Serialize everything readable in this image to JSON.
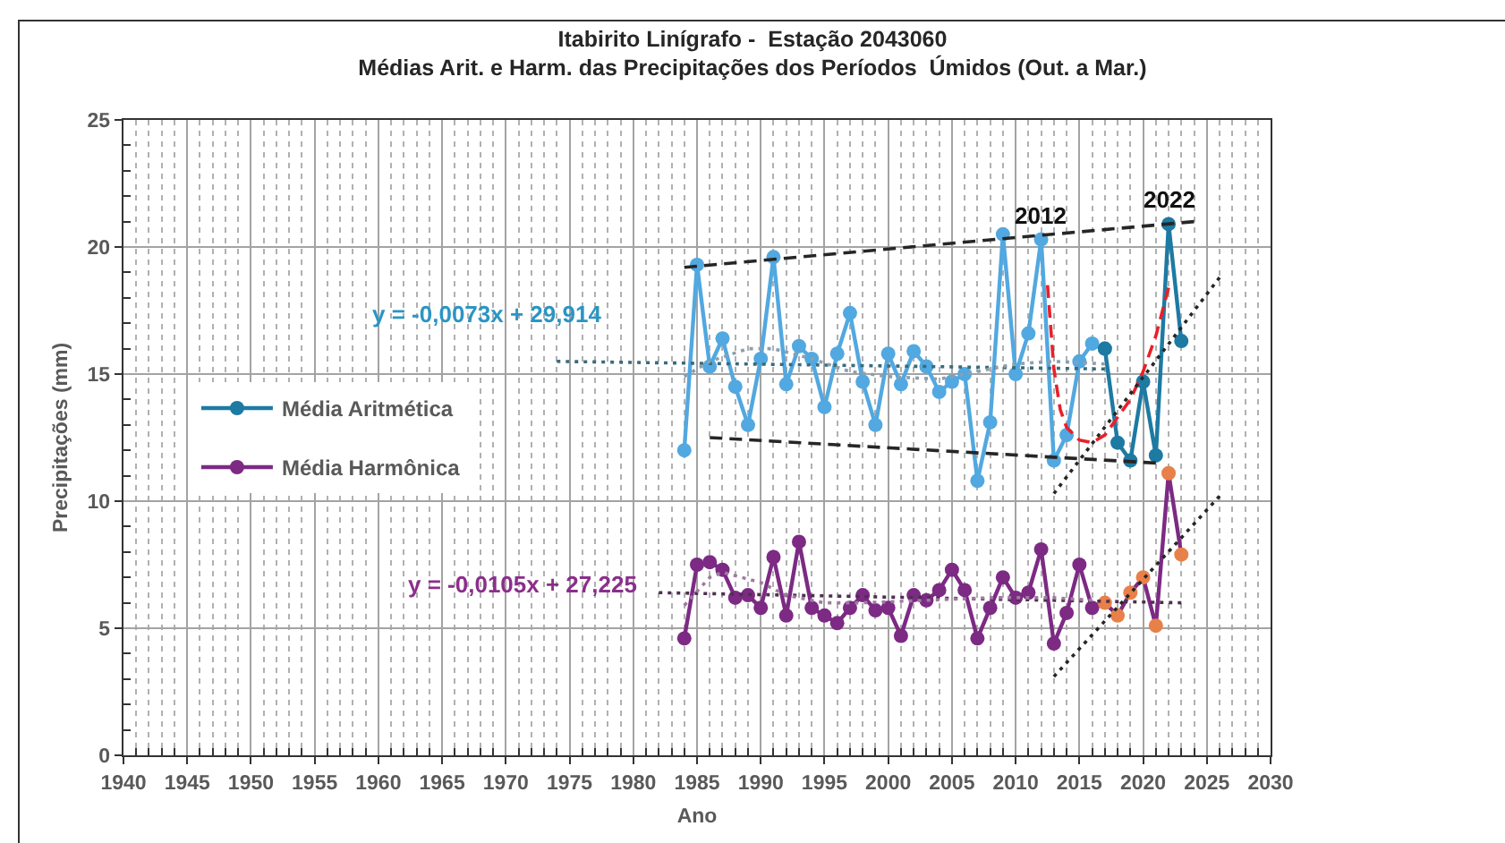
{
  "chart_data": {
    "type": "line",
    "title": "Itabirito Linígrafo -  Estação 2043060",
    "subtitle": "Médias Arit. e Harm. das Precipitações dos Períodos  Úmidos (Out. a Mar.)",
    "xlabel": "Ano",
    "ylabel": "Precipitações (mm)",
    "xlim": [
      1940,
      2030
    ],
    "ylim": [
      0,
      25
    ],
    "xticks": [
      1940,
      {
        "value": 1941,
        "label": null
      },
      {
        "value": 1942,
        "label": null
      },
      {
        "value": 1943,
        "label": null
      },
      {
        "value": 1944,
        "label": null
      },
      1945,
      {
        "value": 1946,
        "label": null
      },
      {
        "value": 1947,
        "label": null
      },
      {
        "value": 1948,
        "label": null
      },
      {
        "value": 1949,
        "label": null
      },
      1950,
      {
        "value": 1951,
        "label": null
      },
      {
        "value": 1952,
        "label": null
      },
      {
        "value": 1953,
        "label": null
      },
      {
        "value": 1954,
        "label": null
      },
      1955,
      {
        "value": 1956,
        "label": null
      },
      {
        "value": 1957,
        "label": null
      },
      {
        "value": 1958,
        "label": null
      },
      {
        "value": 1959,
        "label": null
      },
      1960,
      {
        "value": 1961,
        "label": null
      },
      {
        "value": 1962,
        "label": null
      },
      {
        "value": 1963,
        "label": null
      },
      {
        "value": 1964,
        "label": null
      },
      1965,
      {
        "value": 1966,
        "label": null
      },
      {
        "value": 1967,
        "label": null
      },
      {
        "value": 1968,
        "label": null
      },
      {
        "value": 1969,
        "label": null
      },
      1970,
      {
        "value": 1971,
        "label": null
      },
      {
        "value": 1972,
        "label": null
      },
      {
        "value": 1973,
        "label": null
      },
      {
        "value": 1974,
        "label": null
      },
      1975,
      {
        "value": 1976,
        "label": null
      },
      {
        "value": 1977,
        "label": null
      },
      {
        "value": 1978,
        "label": null
      },
      {
        "value": 1979,
        "label": null
      },
      1980,
      {
        "value": 1981,
        "label": null
      },
      {
        "value": 1982,
        "label": null
      },
      {
        "value": 1983,
        "label": null
      },
      {
        "value": 1984,
        "label": null
      },
      1985,
      {
        "value": 1986,
        "label": null
      },
      {
        "value": 1987,
        "label": null
      },
      {
        "value": 1988,
        "label": null
      },
      {
        "value": 1989,
        "label": null
      },
      1990,
      {
        "value": 1991,
        "label": null
      },
      {
        "value": 1992,
        "label": null
      },
      {
        "value": 1993,
        "label": null
      },
      {
        "value": 1994,
        "label": null
      },
      1995,
      {
        "value": 1996,
        "label": null
      },
      {
        "value": 1997,
        "label": null
      },
      {
        "value": 1998,
        "label": null
      },
      {
        "value": 1999,
        "label": null
      },
      2000,
      {
        "value": 2001,
        "label": null
      },
      {
        "value": 2002,
        "label": null
      },
      {
        "value": 2003,
        "label": null
      },
      {
        "value": 2004,
        "label": null
      },
      2005,
      {
        "value": 2006,
        "label": null
      },
      {
        "value": 2007,
        "label": null
      },
      {
        "value": 2008,
        "label": null
      },
      {
        "value": 2009,
        "label": null
      },
      2010,
      {
        "value": 2011,
        "label": null
      },
      {
        "value": 2012,
        "label": null
      },
      {
        "value": 2013,
        "label": null
      },
      {
        "value": 2014,
        "label": null
      },
      2015,
      {
        "value": 2016,
        "label": null
      },
      {
        "value": 2017,
        "label": null
      },
      {
        "value": 2018,
        "label": null
      },
      {
        "value": 2019,
        "label": null
      },
      2020,
      {
        "value": 2021,
        "label": null
      },
      {
        "value": 2022,
        "label": null
      },
      {
        "value": 2023,
        "label": null
      },
      {
        "value": 2024,
        "label": null
      },
      2025,
      {
        "value": 2026,
        "label": null
      },
      {
        "value": 2027,
        "label": null
      },
      {
        "value": 2028,
        "label": null
      },
      {
        "value": 2029,
        "label": null
      },
      2030
    ],
    "yticks": [
      0,
      {
        "value": 1,
        "label": null
      },
      {
        "value": 2,
        "label": null
      },
      {
        "value": 3,
        "label": null
      },
      {
        "value": 4,
        "label": null
      },
      5,
      {
        "value": 6,
        "label": null
      },
      {
        "value": 7,
        "label": null
      },
      {
        "value": 8,
        "label": null
      },
      {
        "value": 9,
        "label": null
      },
      10,
      {
        "value": 11,
        "label": null
      },
      {
        "value": 12,
        "label": null
      },
      {
        "value": 13,
        "label": null
      },
      {
        "value": 14,
        "label": null
      },
      15,
      {
        "value": 16,
        "label": null
      },
      {
        "value": 17,
        "label": null
      },
      {
        "value": 18,
        "label": null
      },
      {
        "value": 19,
        "label": null
      },
      20,
      {
        "value": 21,
        "label": null
      },
      {
        "value": 22,
        "label": null
      },
      {
        "value": 23,
        "label": null
      },
      {
        "value": 24,
        "label": null
      },
      25
    ],
    "grid": true,
    "legend": "left",
    "annotations": [
      "y = -0,0073x + 29,914",
      "y = -0,0105x + 27,225",
      {
        "text": "2012",
        "x": 2012,
        "y": 20.3
      },
      {
        "text": "2022",
        "x": 2022,
        "y": 20.9
      }
    ],
    "series": [
      {
        "x": [
          1984,
          1985,
          1986,
          1987,
          1988,
          1989,
          1990,
          1991,
          1992,
          1993,
          1994,
          1995,
          1996,
          1997,
          1998,
          1999,
          2000,
          2001,
          2002,
          2003,
          2004,
          2005,
          2006,
          2007,
          2008,
          2009,
          2010,
          2011,
          2012,
          2013,
          2014,
          2015,
          2016,
          2017
        ],
        "values": [
          12.0,
          19.3,
          15.3,
          16.4,
          14.5,
          13.0,
          15.6,
          19.6,
          14.6,
          16.1,
          15.6,
          13.7,
          15.8,
          17.4,
          14.7,
          13.0,
          15.8,
          14.6,
          15.9,
          15.3,
          14.3,
          14.7,
          15.0,
          10.8,
          13.1,
          20.5,
          15.0,
          16.6,
          20.3,
          11.6,
          12.6,
          15.5,
          16.2,
          16.0
        ],
        "color": "#52a8e0",
        "marker": "circle",
        "line_style": "solid"
      },
      {
        "name": "Média Aritmética",
        "x": [
          2017,
          2018,
          2019,
          2020,
          2021,
          2022,
          2023
        ],
        "values": [
          16.0,
          12.3,
          11.6,
          14.7,
          11.8,
          20.9,
          16.3
        ],
        "color": "#1d7aa3",
        "marker": "circle",
        "line_style": "solid"
      },
      {
        "name": "Média Harmônica",
        "x": [
          1984,
          1985,
          1986,
          1987,
          1988,
          1989,
          1990,
          1991,
          1992,
          1993,
          1994,
          1995,
          1996,
          1997,
          1998,
          1999,
          2000,
          2001,
          2002,
          2003,
          2004,
          2005,
          2006,
          2007,
          2008,
          2009,
          2010,
          2011,
          2012,
          2013,
          2014,
          2015,
          2016,
          2017,
          2018,
          2019,
          2020,
          2021,
          2022,
          2023
        ],
        "values": [
          4.6,
          7.5,
          7.6,
          7.3,
          6.2,
          6.3,
          5.8,
          7.8,
          5.5,
          8.4,
          5.8,
          5.5,
          5.2,
          5.8,
          6.3,
          5.7,
          5.8,
          4.7,
          6.3,
          6.1,
          6.5,
          7.3,
          6.5,
          4.6,
          5.8,
          7.0,
          6.2,
          6.4,
          8.1,
          4.4,
          5.6,
          7.5,
          5.8,
          6.0,
          5.5,
          6.4,
          7.0,
          5.1,
          11.1,
          7.9
        ],
        "color": "#7c2a84",
        "colors": [
          "#7c2a84",
          "#7c2a84",
          "#7c2a84",
          "#7c2a84",
          "#7c2a84",
          "#7c2a84",
          "#7c2a84",
          "#7c2a84",
          "#7c2a84",
          "#7c2a84",
          "#7c2a84",
          "#7c2a84",
          "#7c2a84",
          "#7c2a84",
          "#7c2a84",
          "#7c2a84",
          "#7c2a84",
          "#7c2a84",
          "#7c2a84",
          "#7c2a84",
          "#7c2a84",
          "#7c2a84",
          "#7c2a84",
          "#7c2a84",
          "#7c2a84",
          "#7c2a84",
          "#7c2a84",
          "#7c2a84",
          "#7c2a84",
          "#7c2a84",
          "#7c2a84",
          "#7c2a84",
          "#7c2a84",
          "#e8804a",
          "#e8804a",
          "#e8804a",
          "#e8804a",
          "#e8804a",
          "#e8804a",
          "#e8804a"
        ],
        "marker": "circle",
        "line_style": "solid"
      },
      {
        "x": [
          1974,
          2017
        ],
        "values": [
          15.5,
          15.2
        ],
        "color": "#3a6b7a",
        "marker": "none",
        "line_style": "dotted"
      },
      {
        "x": [
          1984,
          1986,
          1989,
          1991,
          1994,
          1997,
          2000,
          2004,
          2006,
          2010,
          2013,
          2017
        ],
        "values": [
          14.9,
          15.5,
          16.0,
          16.0,
          15.6,
          15.1,
          14.9,
          14.8,
          15.0,
          15.4,
          15.5,
          15.4
        ],
        "color": "#8aa0b0",
        "marker": "none",
        "line_style": "dotted"
      },
      {
        "x": [
          1982,
          2023
        ],
        "values": [
          6.4,
          6.0
        ],
        "color": "#4e2f50",
        "marker": "none",
        "line_style": "dotted"
      },
      {
        "x": [
          1984,
          1986,
          1987,
          1990,
          1992,
          1995,
          1998,
          2003,
          2008,
          2013,
          2016
        ],
        "values": [
          5.9,
          7.0,
          7.2,
          6.8,
          6.3,
          6.0,
          6.0,
          6.1,
          6.2,
          6.2,
          6.1
        ],
        "color": "#a07aa2",
        "marker": "none",
        "line_style": "dotted"
      },
      {
        "x": [
          1984,
          2024
        ],
        "values": [
          19.2,
          21.0
        ],
        "color": "#262626",
        "marker": "none",
        "line_style": "dashed"
      },
      {
        "x": [
          1986,
          2021
        ],
        "values": [
          12.5,
          11.5
        ],
        "color": "#262626",
        "marker": "none",
        "line_style": "dashed"
      },
      {
        "x": [
          2012.5,
          2013,
          2013.5,
          2014,
          2015,
          2016,
          2017,
          2018,
          2019,
          2020,
          2021,
          2022
        ],
        "values": [
          18.5,
          15.2,
          13.6,
          12.9,
          12.4,
          12.3,
          12.6,
          13.3,
          14.0,
          15.1,
          16.5,
          18.4
        ],
        "color": "#e8202a",
        "marker": "none",
        "line_style": "dashed"
      },
      {
        "x": [
          2013,
          2026
        ],
        "values": [
          10.3,
          18.8
        ],
        "color": "#262626",
        "marker": "none",
        "line_style": "dotted"
      },
      {
        "x": [
          2013,
          2026
        ],
        "values": [
          3.1,
          10.2
        ],
        "color": "#262626",
        "marker": "none",
        "line_style": "dotted"
      }
    ]
  }
}
